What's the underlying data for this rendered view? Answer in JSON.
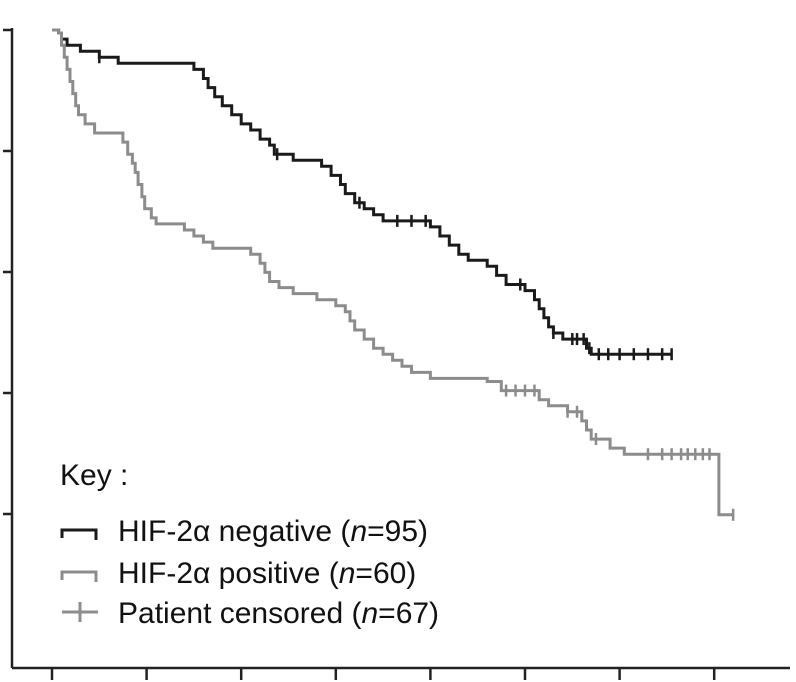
{
  "chart_data": {
    "type": "line",
    "subtype": "kaplan-meier",
    "title": "",
    "xlabel": "",
    "ylabel": "",
    "xlim": [
      0,
      7.7
    ],
    "ylim": [
      0.0,
      1.0
    ],
    "x_tick_count": 8,
    "y_tick_count": 5,
    "grid": false,
    "legend": {
      "placement": "bottom-left",
      "title": "Key :",
      "entries": [
        {
          "key": "neg",
          "prefix": "HIF-2α negative (",
          "italic": "n",
          "suffix": "=95)"
        },
        {
          "key": "pos",
          "prefix": "HIF-2α positive (",
          "italic": "n",
          "suffix": "=60)"
        },
        {
          "key": "cens",
          "prefix": "Patient censored (",
          "italic": "n",
          "suffix": "=67)"
        }
      ]
    },
    "colors": {
      "neg": "#1a1a1a",
      "pos": "#8c8c8c",
      "axis": "#222222"
    },
    "series": [
      {
        "key": "neg",
        "steps": [
          [
            0.07,
            0.995
          ],
          [
            0.1,
            0.985
          ],
          [
            0.16,
            0.975
          ],
          [
            0.3,
            0.965
          ],
          [
            0.5,
            0.955
          ],
          [
            0.7,
            0.945
          ],
          [
            1.0,
            0.945
          ],
          [
            1.5,
            0.935
          ],
          [
            1.6,
            0.92
          ],
          [
            1.65,
            0.905
          ],
          [
            1.72,
            0.89
          ],
          [
            1.8,
            0.875
          ],
          [
            1.9,
            0.86
          ],
          [
            2.0,
            0.845
          ],
          [
            2.1,
            0.835
          ],
          [
            2.2,
            0.82
          ],
          [
            2.3,
            0.81
          ],
          [
            2.35,
            0.795
          ],
          [
            2.55,
            0.785
          ],
          [
            2.85,
            0.775
          ],
          [
            2.95,
            0.76
          ],
          [
            3.05,
            0.745
          ],
          [
            3.1,
            0.73
          ],
          [
            3.2,
            0.715
          ],
          [
            3.3,
            0.705
          ],
          [
            3.4,
            0.695
          ],
          [
            3.5,
            0.685
          ],
          [
            4.0,
            0.675
          ],
          [
            4.1,
            0.66
          ],
          [
            4.2,
            0.645
          ],
          [
            4.3,
            0.63
          ],
          [
            4.4,
            0.62
          ],
          [
            4.6,
            0.61
          ],
          [
            4.7,
            0.595
          ],
          [
            4.8,
            0.58
          ],
          [
            5.0,
            0.57
          ],
          [
            5.1,
            0.555
          ],
          [
            5.15,
            0.54
          ],
          [
            5.2,
            0.525
          ],
          [
            5.25,
            0.51
          ],
          [
            5.3,
            0.5
          ],
          [
            5.4,
            0.49
          ],
          [
            5.65,
            0.475
          ],
          [
            5.7,
            0.465
          ]
        ],
        "end_x": 6.55,
        "censored_x": [
          0.5,
          2.38,
          3.25,
          3.65,
          3.8,
          3.95,
          4.95,
          5.3,
          5.5,
          5.55,
          5.62,
          5.68,
          5.78,
          5.88,
          6.0,
          6.15,
          6.3,
          6.45,
          6.55
        ]
      },
      {
        "key": "pos",
        "steps": [
          [
            0.07,
            0.995
          ],
          [
            0.1,
            0.975
          ],
          [
            0.13,
            0.955
          ],
          [
            0.16,
            0.935
          ],
          [
            0.19,
            0.915
          ],
          [
            0.22,
            0.895
          ],
          [
            0.25,
            0.875
          ],
          [
            0.28,
            0.86
          ],
          [
            0.35,
            0.845
          ],
          [
            0.45,
            0.83
          ],
          [
            0.75,
            0.815
          ],
          [
            0.8,
            0.795
          ],
          [
            0.85,
            0.78
          ],
          [
            0.88,
            0.765
          ],
          [
            0.91,
            0.745
          ],
          [
            0.95,
            0.725
          ],
          [
            0.98,
            0.705
          ],
          [
            1.05,
            0.69
          ],
          [
            1.1,
            0.68
          ],
          [
            1.4,
            0.67
          ],
          [
            1.5,
            0.66
          ],
          [
            1.6,
            0.65
          ],
          [
            1.7,
            0.64
          ],
          [
            2.1,
            0.63
          ],
          [
            2.2,
            0.615
          ],
          [
            2.25,
            0.6
          ],
          [
            2.3,
            0.585
          ],
          [
            2.4,
            0.575
          ],
          [
            2.55,
            0.565
          ],
          [
            2.8,
            0.555
          ],
          [
            3.0,
            0.545
          ],
          [
            3.1,
            0.535
          ],
          [
            3.15,
            0.52
          ],
          [
            3.2,
            0.505
          ],
          [
            3.3,
            0.49
          ],
          [
            3.4,
            0.475
          ],
          [
            3.5,
            0.465
          ],
          [
            3.6,
            0.455
          ],
          [
            3.7,
            0.445
          ],
          [
            3.8,
            0.435
          ],
          [
            4.0,
            0.425
          ],
          [
            4.6,
            0.42
          ],
          [
            4.75,
            0.405
          ],
          [
            5.15,
            0.39
          ],
          [
            5.25,
            0.38
          ],
          [
            5.45,
            0.37
          ],
          [
            5.6,
            0.355
          ],
          [
            5.65,
            0.34
          ],
          [
            5.7,
            0.325
          ],
          [
            5.9,
            0.31
          ],
          [
            6.05,
            0.3
          ],
          [
            7.05,
            0.2
          ]
        ],
        "end_x": 7.2,
        "censored_x": [
          4.8,
          4.9,
          5.0,
          5.1,
          5.45,
          5.55,
          5.75,
          6.3,
          6.45,
          6.55,
          6.65,
          6.72,
          6.8,
          6.88,
          6.95,
          7.2
        ]
      }
    ]
  }
}
